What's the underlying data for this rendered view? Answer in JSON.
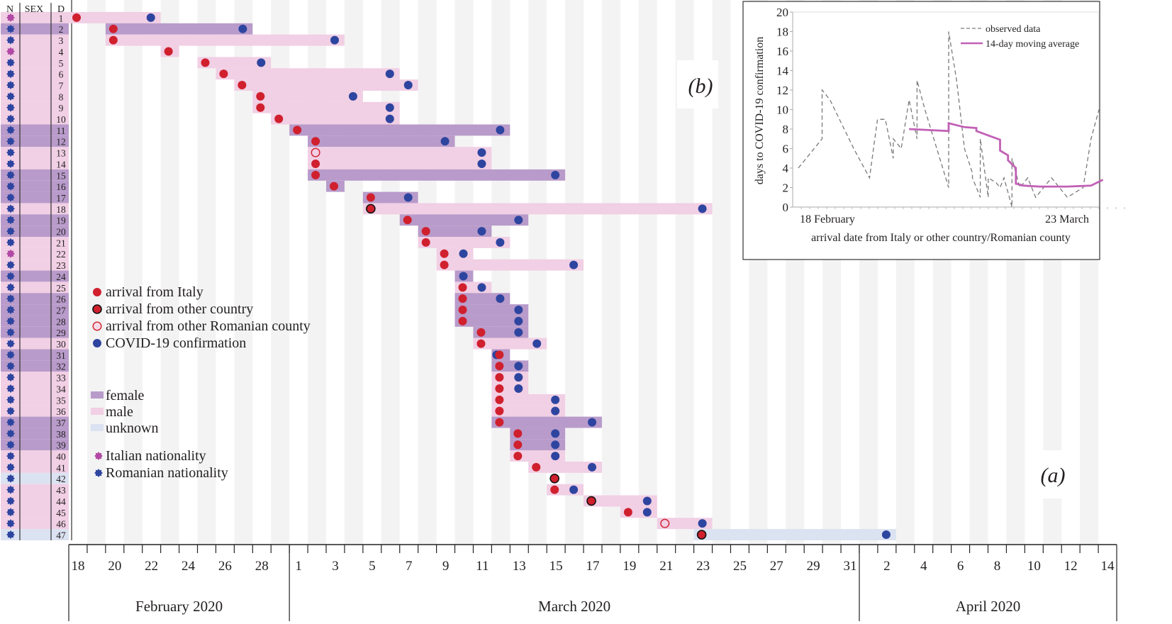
{
  "chart_data": [
    {
      "id": "main",
      "type": "timeline",
      "panel_label": "(a)",
      "header": {
        "n": "N",
        "sex": "SEX",
        "d": "D"
      },
      "start_date": "2020-02-18",
      "num_days": 57,
      "months": [
        {
          "label": "February 2020",
          "start_day": 0,
          "end_day": 12
        },
        {
          "label": "March 2020",
          "start_day": 12,
          "end_day": 43
        },
        {
          "label": "April 2020",
          "start_day": 43,
          "end_day": 57
        }
      ],
      "tick_labels": [
        {
          "day": 0,
          "label": "18"
        },
        {
          "day": 2,
          "label": "20"
        },
        {
          "day": 4,
          "label": "22"
        },
        {
          "day": 6,
          "label": "24"
        },
        {
          "day": 8,
          "label": "26"
        },
        {
          "day": 10,
          "label": "28"
        },
        {
          "day": 12,
          "label": "1"
        },
        {
          "day": 14,
          "label": "3"
        },
        {
          "day": 16,
          "label": "5"
        },
        {
          "day": 18,
          "label": "7"
        },
        {
          "day": 20,
          "label": "9"
        },
        {
          "day": 22,
          "label": "11"
        },
        {
          "day": 24,
          "label": "13"
        },
        {
          "day": 26,
          "label": "15"
        },
        {
          "day": 28,
          "label": "17"
        },
        {
          "day": 30,
          "label": "19"
        },
        {
          "day": 32,
          "label": "21"
        },
        {
          "day": 34,
          "label": "23"
        },
        {
          "day": 36,
          "label": "25"
        },
        {
          "day": 38,
          "label": "27"
        },
        {
          "day": 40,
          "label": "29"
        },
        {
          "day": 42,
          "label": "31"
        },
        {
          "day": 44,
          "label": "2"
        },
        {
          "day": 46,
          "label": "4"
        },
        {
          "day": 48,
          "label": "6"
        },
        {
          "day": 50,
          "label": "8"
        },
        {
          "day": 52,
          "label": "10"
        },
        {
          "day": 54,
          "label": "12"
        },
        {
          "day": 56,
          "label": "14"
        }
      ],
      "colors": {
        "female": "#b89bca",
        "male": "#f1cfe4",
        "unknown": "#dbe2f1",
        "arrival": "#d0202e",
        "confirmation": "#2e45a0",
        "italian": "#b249a5",
        "romanian": "#2e45a0",
        "stripe": "#f3f3f3"
      },
      "cases": [
        {
          "d": 1,
          "sex": "male",
          "nat": "italian",
          "arrival": 0,
          "arrival_type": "italy",
          "confirm": 4
        },
        {
          "d": 2,
          "sex": "female",
          "nat": "romanian",
          "arrival": 2,
          "arrival_type": "italy",
          "confirm": 9
        },
        {
          "d": 3,
          "sex": "male",
          "nat": "romanian",
          "arrival": 2,
          "arrival_type": "italy",
          "confirm": 14
        },
        {
          "d": 4,
          "sex": "male",
          "nat": "italian",
          "arrival": 5,
          "arrival_type": "italy",
          "confirm": null
        },
        {
          "d": 5,
          "sex": "male",
          "nat": "romanian",
          "arrival": 7,
          "arrival_type": "italy",
          "confirm": 10
        },
        {
          "d": 6,
          "sex": "male",
          "nat": "romanian",
          "arrival": 8,
          "arrival_type": "italy",
          "confirm": 17
        },
        {
          "d": 7,
          "sex": "male",
          "nat": "romanian",
          "arrival": 9,
          "arrival_type": "italy",
          "confirm": 18
        },
        {
          "d": 8,
          "sex": "male",
          "nat": "romanian",
          "arrival": 10,
          "arrival_type": "italy",
          "confirm": 15
        },
        {
          "d": 9,
          "sex": "male",
          "nat": "romanian",
          "arrival": 10,
          "arrival_type": "italy",
          "confirm": 17
        },
        {
          "d": 10,
          "sex": "male",
          "nat": "romanian",
          "arrival": 11,
          "arrival_type": "italy",
          "confirm": 17
        },
        {
          "d": 11,
          "sex": "female",
          "nat": "romanian",
          "arrival": 12,
          "arrival_type": "italy",
          "confirm": 23
        },
        {
          "d": 12,
          "sex": "female",
          "nat": "romanian",
          "arrival": 13,
          "arrival_type": "italy",
          "confirm": 20
        },
        {
          "d": 13,
          "sex": "male",
          "nat": "romanian",
          "arrival": 13,
          "arrival_type": "county",
          "confirm": 22
        },
        {
          "d": 14,
          "sex": "male",
          "nat": "romanian",
          "arrival": 13,
          "arrival_type": "italy",
          "confirm": 22
        },
        {
          "d": 15,
          "sex": "female",
          "nat": "romanian",
          "arrival": 13,
          "arrival_type": "italy",
          "confirm": 26
        },
        {
          "d": 16,
          "sex": "female",
          "nat": "romanian",
          "arrival": 14,
          "arrival_type": "italy",
          "confirm": null
        },
        {
          "d": 17,
          "sex": "female",
          "nat": "romanian",
          "arrival": 16,
          "arrival_type": "italy",
          "confirm": 18
        },
        {
          "d": 18,
          "sex": "male",
          "nat": "romanian",
          "arrival": 16,
          "arrival_type": "other",
          "confirm": 34
        },
        {
          "d": 19,
          "sex": "female",
          "nat": "romanian",
          "arrival": 18,
          "arrival_type": "italy",
          "confirm": 24
        },
        {
          "d": 20,
          "sex": "female",
          "nat": "romanian",
          "arrival": 19,
          "arrival_type": "italy",
          "confirm": 22
        },
        {
          "d": 21,
          "sex": "male",
          "nat": "romanian",
          "arrival": 19,
          "arrival_type": "italy",
          "confirm": 23
        },
        {
          "d": 22,
          "sex": "male",
          "nat": "italian",
          "arrival": 20,
          "arrival_type": "italy",
          "confirm": 21
        },
        {
          "d": 23,
          "sex": "male",
          "nat": "romanian",
          "arrival": 20,
          "arrival_type": "italy",
          "confirm": 27
        },
        {
          "d": 24,
          "sex": "female",
          "nat": "romanian",
          "arrival": null,
          "arrival_type": null,
          "confirm": 21
        },
        {
          "d": 25,
          "sex": "male",
          "nat": "romanian",
          "arrival": 21,
          "arrival_type": "italy",
          "confirm": 22
        },
        {
          "d": 26,
          "sex": "female",
          "nat": "romanian",
          "arrival": 21,
          "arrival_type": "italy",
          "confirm": 23
        },
        {
          "d": 27,
          "sex": "female",
          "nat": "romanian",
          "arrival": 21,
          "arrival_type": "italy",
          "confirm": 24
        },
        {
          "d": 28,
          "sex": "female",
          "nat": "romanian",
          "arrival": 21,
          "arrival_type": "italy",
          "confirm": 24
        },
        {
          "d": 29,
          "sex": "female",
          "nat": "romanian",
          "arrival": 22,
          "arrival_type": "italy",
          "confirm": 24
        },
        {
          "d": 30,
          "sex": "male",
          "nat": "romanian",
          "arrival": 22,
          "arrival_type": "italy",
          "confirm": 25
        },
        {
          "d": 31,
          "sex": "female",
          "nat": "romanian",
          "arrival": 23,
          "arrival_type": "italy",
          "confirm": 23
        },
        {
          "d": 32,
          "sex": "female",
          "nat": "romanian",
          "arrival": 23,
          "arrival_type": "italy",
          "confirm": 24
        },
        {
          "d": 33,
          "sex": "male",
          "nat": "romanian",
          "arrival": 23,
          "arrival_type": "italy",
          "confirm": 24
        },
        {
          "d": 34,
          "sex": "male",
          "nat": "romanian",
          "arrival": 23,
          "arrival_type": "italy",
          "confirm": 24
        },
        {
          "d": 35,
          "sex": "male",
          "nat": "romanian",
          "arrival": 23,
          "arrival_type": "italy",
          "confirm": 26
        },
        {
          "d": 36,
          "sex": "male",
          "nat": "romanian",
          "arrival": 23,
          "arrival_type": "italy",
          "confirm": 26
        },
        {
          "d": 37,
          "sex": "female",
          "nat": "romanian",
          "arrival": 23,
          "arrival_type": "italy",
          "confirm": 28
        },
        {
          "d": 38,
          "sex": "female",
          "nat": "romanian",
          "arrival": 24,
          "arrival_type": "italy",
          "confirm": 26
        },
        {
          "d": 39,
          "sex": "female",
          "nat": "romanian",
          "arrival": 24,
          "arrival_type": "italy",
          "confirm": 26
        },
        {
          "d": 40,
          "sex": "male",
          "nat": "romanian",
          "arrival": 24,
          "arrival_type": "italy",
          "confirm": 26
        },
        {
          "d": 41,
          "sex": "male",
          "nat": "romanian",
          "arrival": 25,
          "arrival_type": "italy",
          "confirm": 28
        },
        {
          "d": 42,
          "sex": "unknown",
          "nat": "romanian",
          "arrival": 26,
          "arrival_type": "other",
          "confirm": null,
          "no_bar": true
        },
        {
          "d": 43,
          "sex": "male",
          "nat": "romanian",
          "arrival": 26,
          "arrival_type": "italy",
          "confirm": 27
        },
        {
          "d": 44,
          "sex": "male",
          "nat": "romanian",
          "arrival": 28,
          "arrival_type": "other",
          "confirm": 31
        },
        {
          "d": 45,
          "sex": "male",
          "nat": "romanian",
          "arrival": 30,
          "arrival_type": "italy",
          "confirm": 31
        },
        {
          "d": 46,
          "sex": "male",
          "nat": "romanian",
          "arrival": 32,
          "arrival_type": "county",
          "confirm": 34
        },
        {
          "d": 47,
          "sex": "unknown",
          "nat": "romanian",
          "arrival": 34,
          "arrival_type": "other",
          "confirm": 44
        }
      ],
      "legend": {
        "markers": [
          {
            "key": "italy",
            "label": "arrival from Italy"
          },
          {
            "key": "other",
            "label": "arrival from other country"
          },
          {
            "key": "county",
            "label": "arrival from other Romanian county"
          },
          {
            "key": "confirm",
            "label": "COVID-19 confirmation"
          }
        ],
        "sex": [
          {
            "key": "female",
            "label": "female"
          },
          {
            "key": "male",
            "label": "male"
          },
          {
            "key": "unknown",
            "label": "unknown"
          }
        ],
        "nationality": [
          {
            "key": "italian",
            "label": "Italian nationality"
          },
          {
            "key": "romanian",
            "label": "Romanian nationality"
          }
        ]
      }
    },
    {
      "id": "inset",
      "type": "line",
      "panel_label": "(b)",
      "xlabel": "arrival date from Italy or other country/Romanian county",
      "ylabel": "days to COVID-19 confirmation",
      "x_tick_labels": [
        {
          "day": 0,
          "label": "18 February"
        },
        {
          "day": 34,
          "label": "23 March"
        }
      ],
      "xlim": [
        -1,
        35
      ],
      "ylim": [
        0,
        20
      ],
      "y_ticks": [
        0,
        2,
        4,
        6,
        8,
        10,
        12,
        14,
        16,
        18,
        20
      ],
      "legend_position": "top-right",
      "series": [
        {
          "name": "observed data",
          "style": "dashed",
          "color": "#7a7a7a",
          "points": [
            [
              0,
              4
            ],
            [
              2,
              6
            ],
            [
              3,
              7
            ],
            [
              3,
              12
            ],
            [
              4,
              11
            ],
            [
              7,
              6
            ],
            [
              9,
              3
            ],
            [
              10,
              9
            ],
            [
              11,
              9
            ],
            [
              12,
              5
            ],
            [
              12,
              7
            ],
            [
              13,
              6
            ],
            [
              14,
              11
            ],
            [
              15,
              7
            ],
            [
              15,
              13
            ],
            [
              16,
              10
            ],
            [
              19,
              2
            ],
            [
              19,
              18
            ],
            [
              20,
              13
            ],
            [
              21,
              6
            ],
            [
              22,
              3.5
            ],
            [
              22,
              3
            ],
            [
              23,
              1
            ],
            [
              23,
              7
            ],
            [
              24,
              1
            ],
            [
              24,
              3
            ],
            [
              25,
              2.5
            ],
            [
              25.5,
              2
            ],
            [
              26,
              3
            ],
            [
              27,
              0
            ],
            [
              27,
              5
            ],
            [
              28,
              2
            ],
            [
              29,
              3
            ],
            [
              30,
              1
            ],
            [
              32,
              3
            ],
            [
              34,
              1
            ],
            [
              36,
              2
            ],
            [
              37,
              7
            ],
            [
              38,
              10
            ]
          ]
        },
        {
          "name": "14-day moving average",
          "style": "solid",
          "color": "#c160b5",
          "points": [
            [
              14,
              8
            ],
            [
              19,
              7.8
            ],
            [
              19,
              8.6
            ],
            [
              21,
              8.2
            ],
            [
              22.5,
              8.1
            ],
            [
              22.5,
              7.8
            ],
            [
              25.5,
              6.9
            ],
            [
              25.5,
              5.8
            ],
            [
              26.5,
              5.3
            ],
            [
              26.5,
              4.8
            ],
            [
              27.5,
              4
            ],
            [
              27.5,
              2.4
            ],
            [
              28.5,
              2.2
            ],
            [
              30.5,
              2.1
            ],
            [
              34,
              2.1
            ],
            [
              37,
              2.2
            ],
            [
              38.5,
              2.8
            ]
          ]
        }
      ]
    }
  ]
}
